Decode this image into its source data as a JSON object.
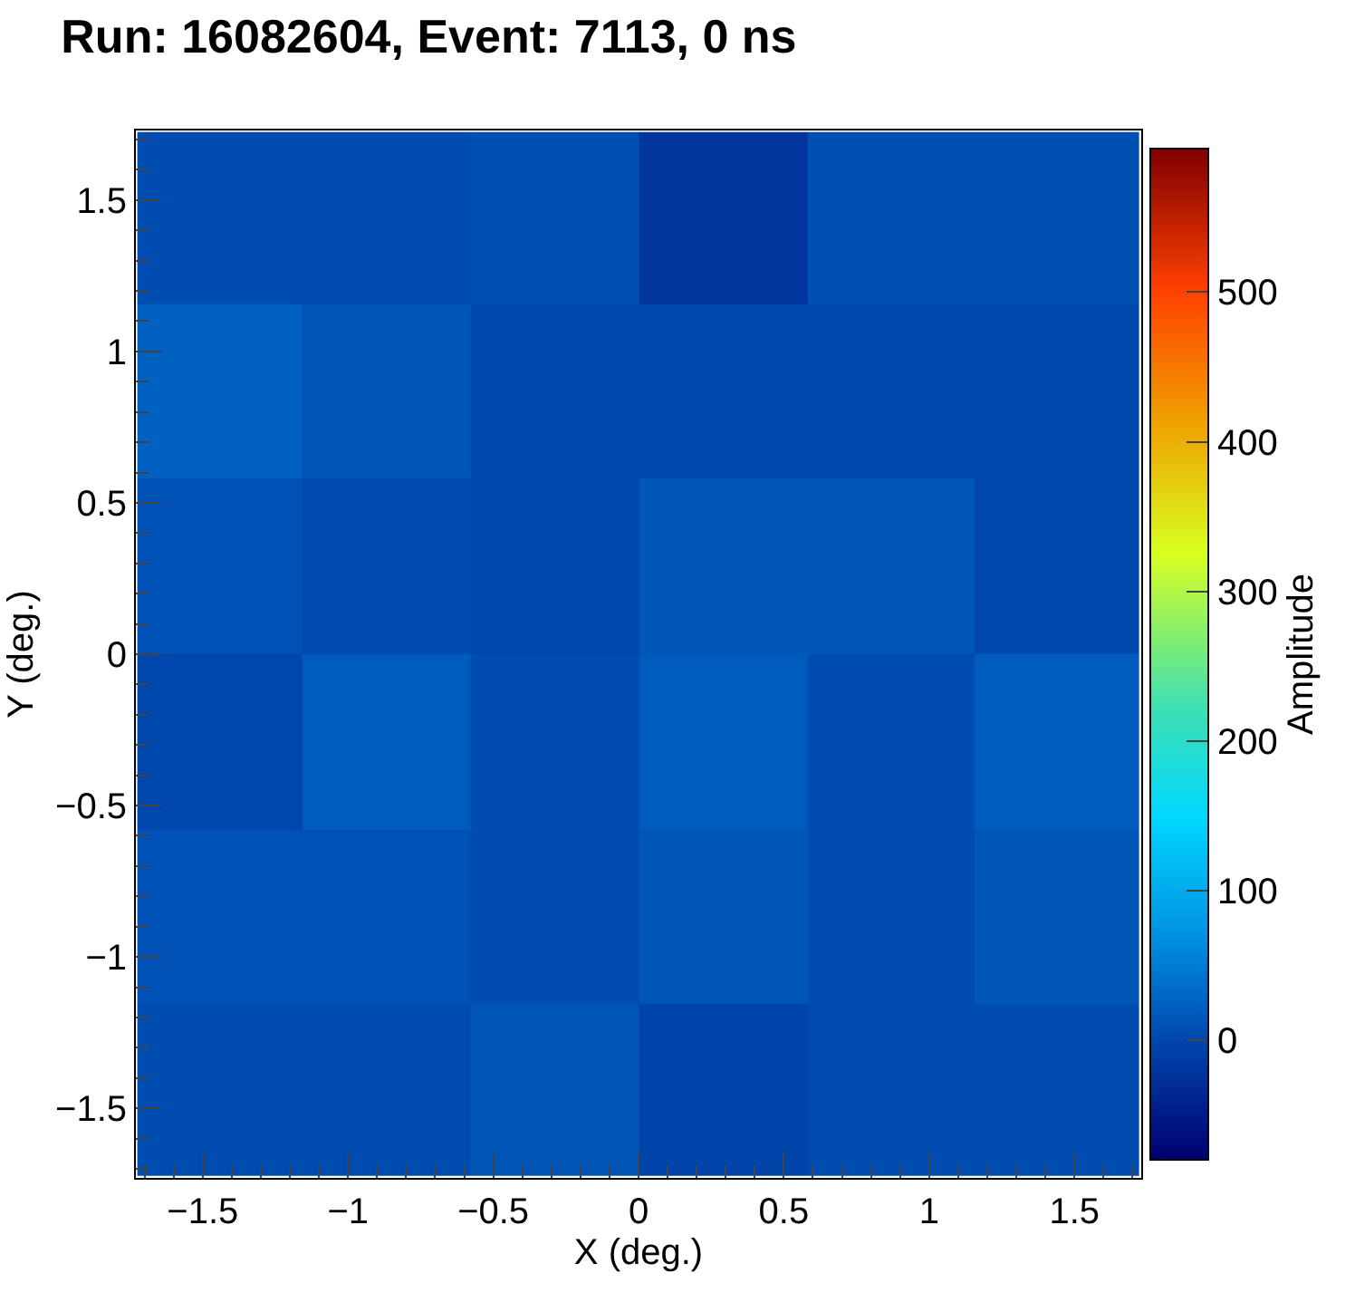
{
  "chart_data": {
    "type": "heatmap",
    "title": "Run: 16082604, Event: 7113, 0 ns",
    "xlabel": "X (deg.)",
    "ylabel": "Y (deg.)",
    "clabel": "Amplitude",
    "x": [
      -1.44,
      -0.87,
      -0.29,
      0.29,
      0.87,
      1.44
    ],
    "y": [
      1.44,
      0.87,
      0.29,
      -0.29,
      -0.87,
      -1.44
    ],
    "cells": [
      [
        5,
        5,
        8,
        -20,
        8,
        8
      ],
      [
        25,
        15,
        0,
        0,
        0,
        0
      ],
      [
        10,
        3,
        0,
        15,
        15,
        0
      ],
      [
        0,
        20,
        5,
        20,
        5,
        20
      ],
      [
        10,
        10,
        5,
        15,
        5,
        15
      ],
      [
        5,
        5,
        12,
        -5,
        5,
        5
      ]
    ],
    "xlim": [
      -1.73,
      1.73
    ],
    "ylim": [
      -1.73,
      1.73
    ],
    "xticks": [
      {
        "value": -1.5,
        "label": "−1.5"
      },
      {
        "value": -1,
        "label": "−1"
      },
      {
        "value": -0.5,
        "label": "−0.5"
      },
      0,
      0.5,
      1,
      1.5
    ],
    "yticks": [
      {
        "value": -1.5,
        "label": "−1.5"
      },
      {
        "value": -1,
        "label": "−1"
      },
      {
        "value": -0.5,
        "label": "−0.5"
      },
      0,
      0.5,
      1,
      1.5
    ],
    "clim": [
      -80,
      596
    ],
    "cticks": [
      0,
      100,
      200,
      300,
      400,
      500
    ]
  }
}
